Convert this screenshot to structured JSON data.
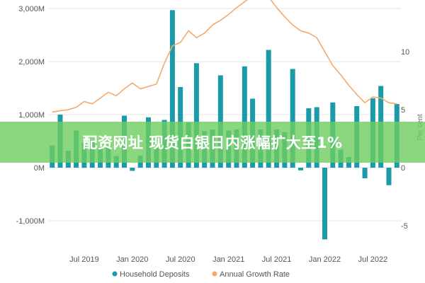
{
  "banner_text": "配资网址 现货白银日内涨幅扩大至1%",
  "colors": {
    "bar": "#1b9aaa",
    "line": "#f6a96b",
    "grid": "#e6e6e6",
    "banner": "#6ecd5f"
  },
  "chart_data": {
    "type": "bar",
    "secondary_type": "line",
    "y_left": {
      "ticks": [
        -1000,
        0,
        1000,
        2000,
        3000
      ],
      "tick_labels": [
        "-1,000M",
        "0M",
        "1,000M",
        "2,000M",
        "3,000M"
      ],
      "range": [
        -1300,
        3050
      ]
    },
    "y_right": {
      "title": "Per cent",
      "ticks": [
        -5,
        0,
        5,
        10
      ],
      "tick_labels": [
        "-5",
        "0",
        "5",
        "10"
      ]
    },
    "x_ticks": [
      {
        "index": 4,
        "label": "Jul 2019"
      },
      {
        "index": 10,
        "label": "Jan 2020"
      },
      {
        "index": 16,
        "label": "Jul 2020"
      },
      {
        "index": 22,
        "label": "Jan 2021"
      },
      {
        "index": 28,
        "label": "Jul 2021"
      },
      {
        "index": 34,
        "label": "Jan 2022"
      },
      {
        "index": 40,
        "label": "Jul 2022"
      }
    ],
    "categories": [
      "2019-03",
      "2019-04",
      "2019-05",
      "2019-06",
      "2019-07",
      "2019-08",
      "2019-09",
      "2019-10",
      "2019-11",
      "2019-12",
      "2020-01",
      "2020-02",
      "2020-03",
      "2020-04",
      "2020-05",
      "2020-06",
      "2020-07",
      "2020-08",
      "2020-09",
      "2020-10",
      "2020-11",
      "2020-12",
      "2021-01",
      "2021-02",
      "2021-03",
      "2021-04",
      "2021-05",
      "2021-06",
      "2021-07",
      "2021-08",
      "2021-09",
      "2021-10",
      "2021-11",
      "2021-12",
      "2022-01",
      "2022-02",
      "2022-03",
      "2022-04",
      "2022-05",
      "2022-06",
      "2022-07",
      "2022-08",
      "2022-09",
      "2022-10"
    ],
    "series": [
      {
        "name": "Household Deposits",
        "kind": "bar",
        "axis": "left",
        "values": [
          420,
          1000,
          320,
          700,
          470,
          520,
          380,
          430,
          220,
          980,
          -60,
          230,
          950,
          380,
          900,
          2970,
          1520,
          850,
          1970,
          690,
          720,
          1740,
          700,
          720,
          1910,
          1300,
          720,
          2220,
          720,
          670,
          1860,
          -50,
          1120,
          1140,
          -1350,
          1230,
          340,
          200,
          1160,
          -200,
          1310,
          1540,
          -330,
          1200
        ]
      },
      {
        "name": "Annual Growth Rate",
        "kind": "line",
        "axis": "right",
        "values": [
          4.8,
          4.9,
          5.0,
          5.2,
          5.7,
          5.5,
          6.0,
          6.5,
          6.2,
          6.8,
          7.3,
          6.8,
          7.0,
          7.2,
          9.0,
          10.5,
          10.8,
          11.8,
          11.2,
          11.6,
          12.3,
          12.7,
          13.2,
          13.8,
          14.3,
          14.8,
          15.0,
          14.7,
          13.8,
          13.0,
          12.3,
          11.8,
          11.6,
          11.2,
          10.0,
          8.8,
          8.0,
          7.1,
          6.3,
          5.6,
          6.1,
          6.0,
          5.6,
          5.5
        ]
      }
    ]
  }
}
